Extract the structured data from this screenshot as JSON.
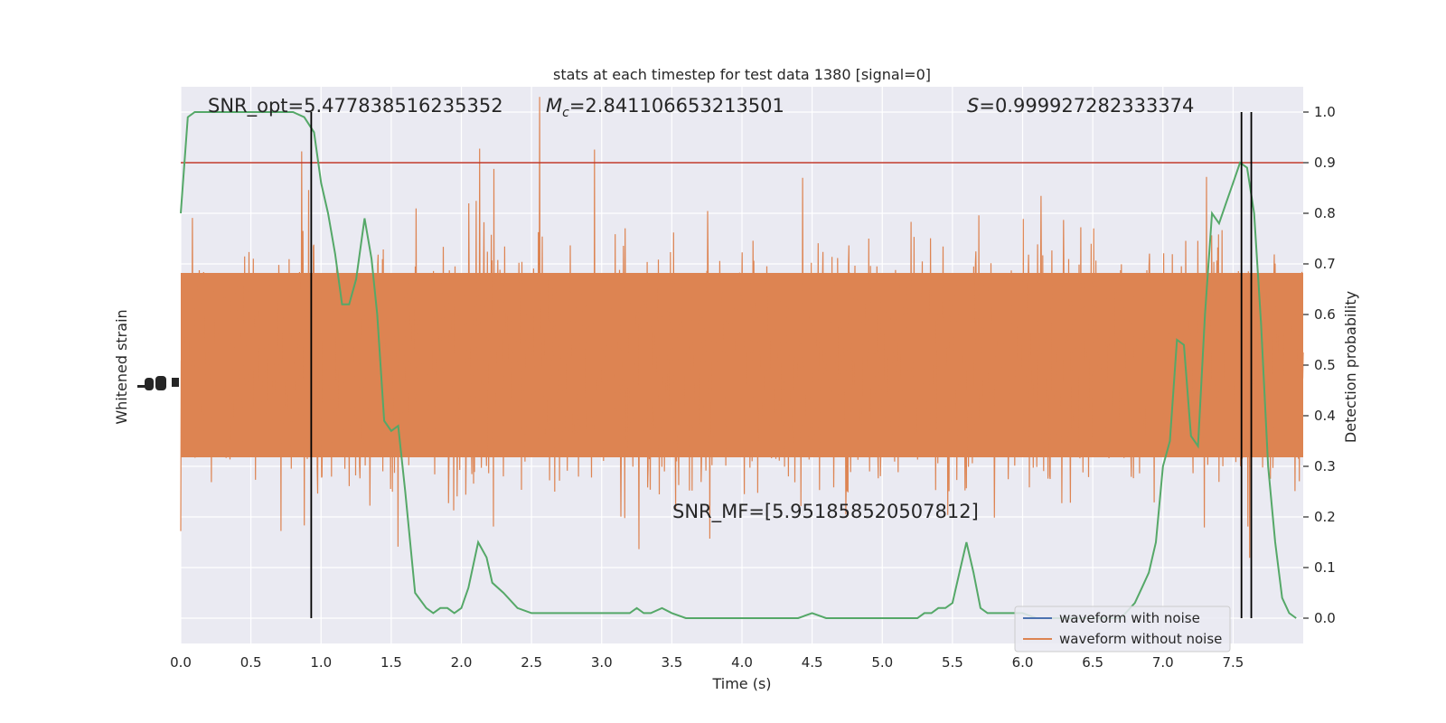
{
  "chart_data": {
    "type": "line",
    "title": "stats at each timestep for test data 1380 [signal=0]",
    "xlabel": "Time (s)",
    "ylabel_left": "Whitened strain",
    "ylabel_right": "Detection probability",
    "xlim": [
      0.0,
      8.0
    ],
    "ylim_right": [
      -0.05,
      1.05
    ],
    "x_ticks": [
      "0.0",
      "0.5",
      "1.0",
      "1.5",
      "2.0",
      "2.5",
      "3.0",
      "3.5",
      "4.0",
      "4.5",
      "5.0",
      "5.5",
      "6.0",
      "6.5",
      "7.0",
      "7.5"
    ],
    "x_tick_values": [
      0.0,
      0.5,
      1.0,
      1.5,
      2.0,
      2.5,
      3.0,
      3.5,
      4.0,
      4.5,
      5.0,
      5.5,
      6.0,
      6.5,
      7.0,
      7.5
    ],
    "y_ticks_right": [
      "0.0",
      "0.1",
      "0.2",
      "0.3",
      "0.4",
      "0.5",
      "0.6",
      "0.7",
      "0.8",
      "0.9",
      "1.0"
    ],
    "y_tick_values_right": [
      0.0,
      0.1,
      0.2,
      0.3,
      0.4,
      0.5,
      0.6,
      0.7,
      0.8,
      0.9,
      1.0
    ],
    "grid": true,
    "legend_position": "lower-right",
    "annotations": {
      "snr_opt": "SNR_opt=5.477838516235352",
      "mc_symbol": "M",
      "mc_sub": "c",
      "mc_value": "=2.841106653213501",
      "s_symbol": "S",
      "s_value": "=0.999927282333374",
      "snr_mf": "SNR_MF=[5.951858520507812]"
    },
    "threshold": {
      "value": 0.9,
      "color": "#c0392b"
    },
    "vertical_lines_x": [
      0.93,
      7.56,
      7.63
    ],
    "series": [
      {
        "name": "waveform with noise",
        "color": "#4c72b0",
        "values": []
      },
      {
        "name": "waveform without noise",
        "color": "#dd8452",
        "amplitude_band_probability_units": [
          0.3,
          0.7
        ]
      },
      {
        "color": "#55a868",
        "x": [
          0.0,
          0.05,
          0.1,
          0.2,
          0.3,
          0.4,
          0.5,
          0.6,
          0.7,
          0.8,
          0.88,
          0.95,
          1.0,
          1.05,
          1.1,
          1.15,
          1.2,
          1.25,
          1.31,
          1.36,
          1.4,
          1.45,
          1.5,
          1.55,
          1.6,
          1.67,
          1.75,
          1.8,
          1.85,
          1.9,
          1.95,
          2.0,
          2.05,
          2.12,
          2.18,
          2.22,
          2.3,
          2.4,
          2.5,
          2.55,
          2.6,
          2.65,
          2.7,
          2.75,
          2.8,
          2.85,
          2.9,
          2.95,
          3.0,
          3.05,
          3.1,
          3.15,
          3.2,
          3.25,
          3.3,
          3.35,
          3.43,
          3.5,
          3.6,
          3.7,
          3.8,
          3.9,
          4.0,
          4.1,
          4.2,
          4.3,
          4.4,
          4.5,
          4.6,
          4.7,
          4.8,
          4.9,
          5.0,
          5.1,
          5.2,
          5.25,
          5.3,
          5.35,
          5.4,
          5.45,
          5.5,
          5.55,
          5.6,
          5.65,
          5.7,
          5.75,
          5.8,
          5.85,
          5.9,
          5.95,
          6.0,
          6.1,
          6.2,
          6.3,
          6.4,
          6.5,
          6.6,
          6.7,
          6.8,
          6.85,
          6.9,
          6.95,
          7.0,
          7.05,
          7.1,
          7.15,
          7.2,
          7.25,
          7.3,
          7.35,
          7.4,
          7.45,
          7.5,
          7.55,
          7.6,
          7.65,
          7.7,
          7.75,
          7.8,
          7.85,
          7.9,
          7.95
        ],
        "y": [
          0.8,
          0.99,
          1.0,
          1.0,
          1.0,
          1.0,
          1.0,
          1.0,
          1.0,
          1.0,
          0.99,
          0.96,
          0.86,
          0.8,
          0.72,
          0.62,
          0.62,
          0.67,
          0.79,
          0.71,
          0.6,
          0.39,
          0.37,
          0.38,
          0.25,
          0.05,
          0.02,
          0.01,
          0.02,
          0.02,
          0.01,
          0.02,
          0.06,
          0.15,
          0.12,
          0.07,
          0.05,
          0.02,
          0.01,
          0.01,
          0.01,
          0.01,
          0.01,
          0.01,
          0.01,
          0.01,
          0.01,
          0.01,
          0.01,
          0.01,
          0.01,
          0.01,
          0.01,
          0.02,
          0.01,
          0.01,
          0.02,
          0.01,
          0.0,
          0.0,
          0.0,
          0.0,
          0.0,
          0.0,
          0.0,
          0.0,
          0.0,
          0.01,
          0.0,
          0.0,
          0.0,
          0.0,
          0.0,
          0.0,
          0.0,
          0.0,
          0.01,
          0.01,
          0.02,
          0.02,
          0.03,
          0.09,
          0.15,
          0.09,
          0.02,
          0.01,
          0.01,
          0.01,
          0.01,
          0.01,
          0.01,
          0.0,
          0.0,
          0.0,
          0.0,
          0.0,
          0.0,
          0.0,
          0.03,
          0.06,
          0.09,
          0.15,
          0.3,
          0.35,
          0.55,
          0.54,
          0.36,
          0.34,
          0.6,
          0.8,
          0.78,
          0.82,
          0.86,
          0.9,
          0.89,
          0.8,
          0.58,
          0.3,
          0.15,
          0.04,
          0.01,
          0.0
        ]
      }
    ]
  }
}
